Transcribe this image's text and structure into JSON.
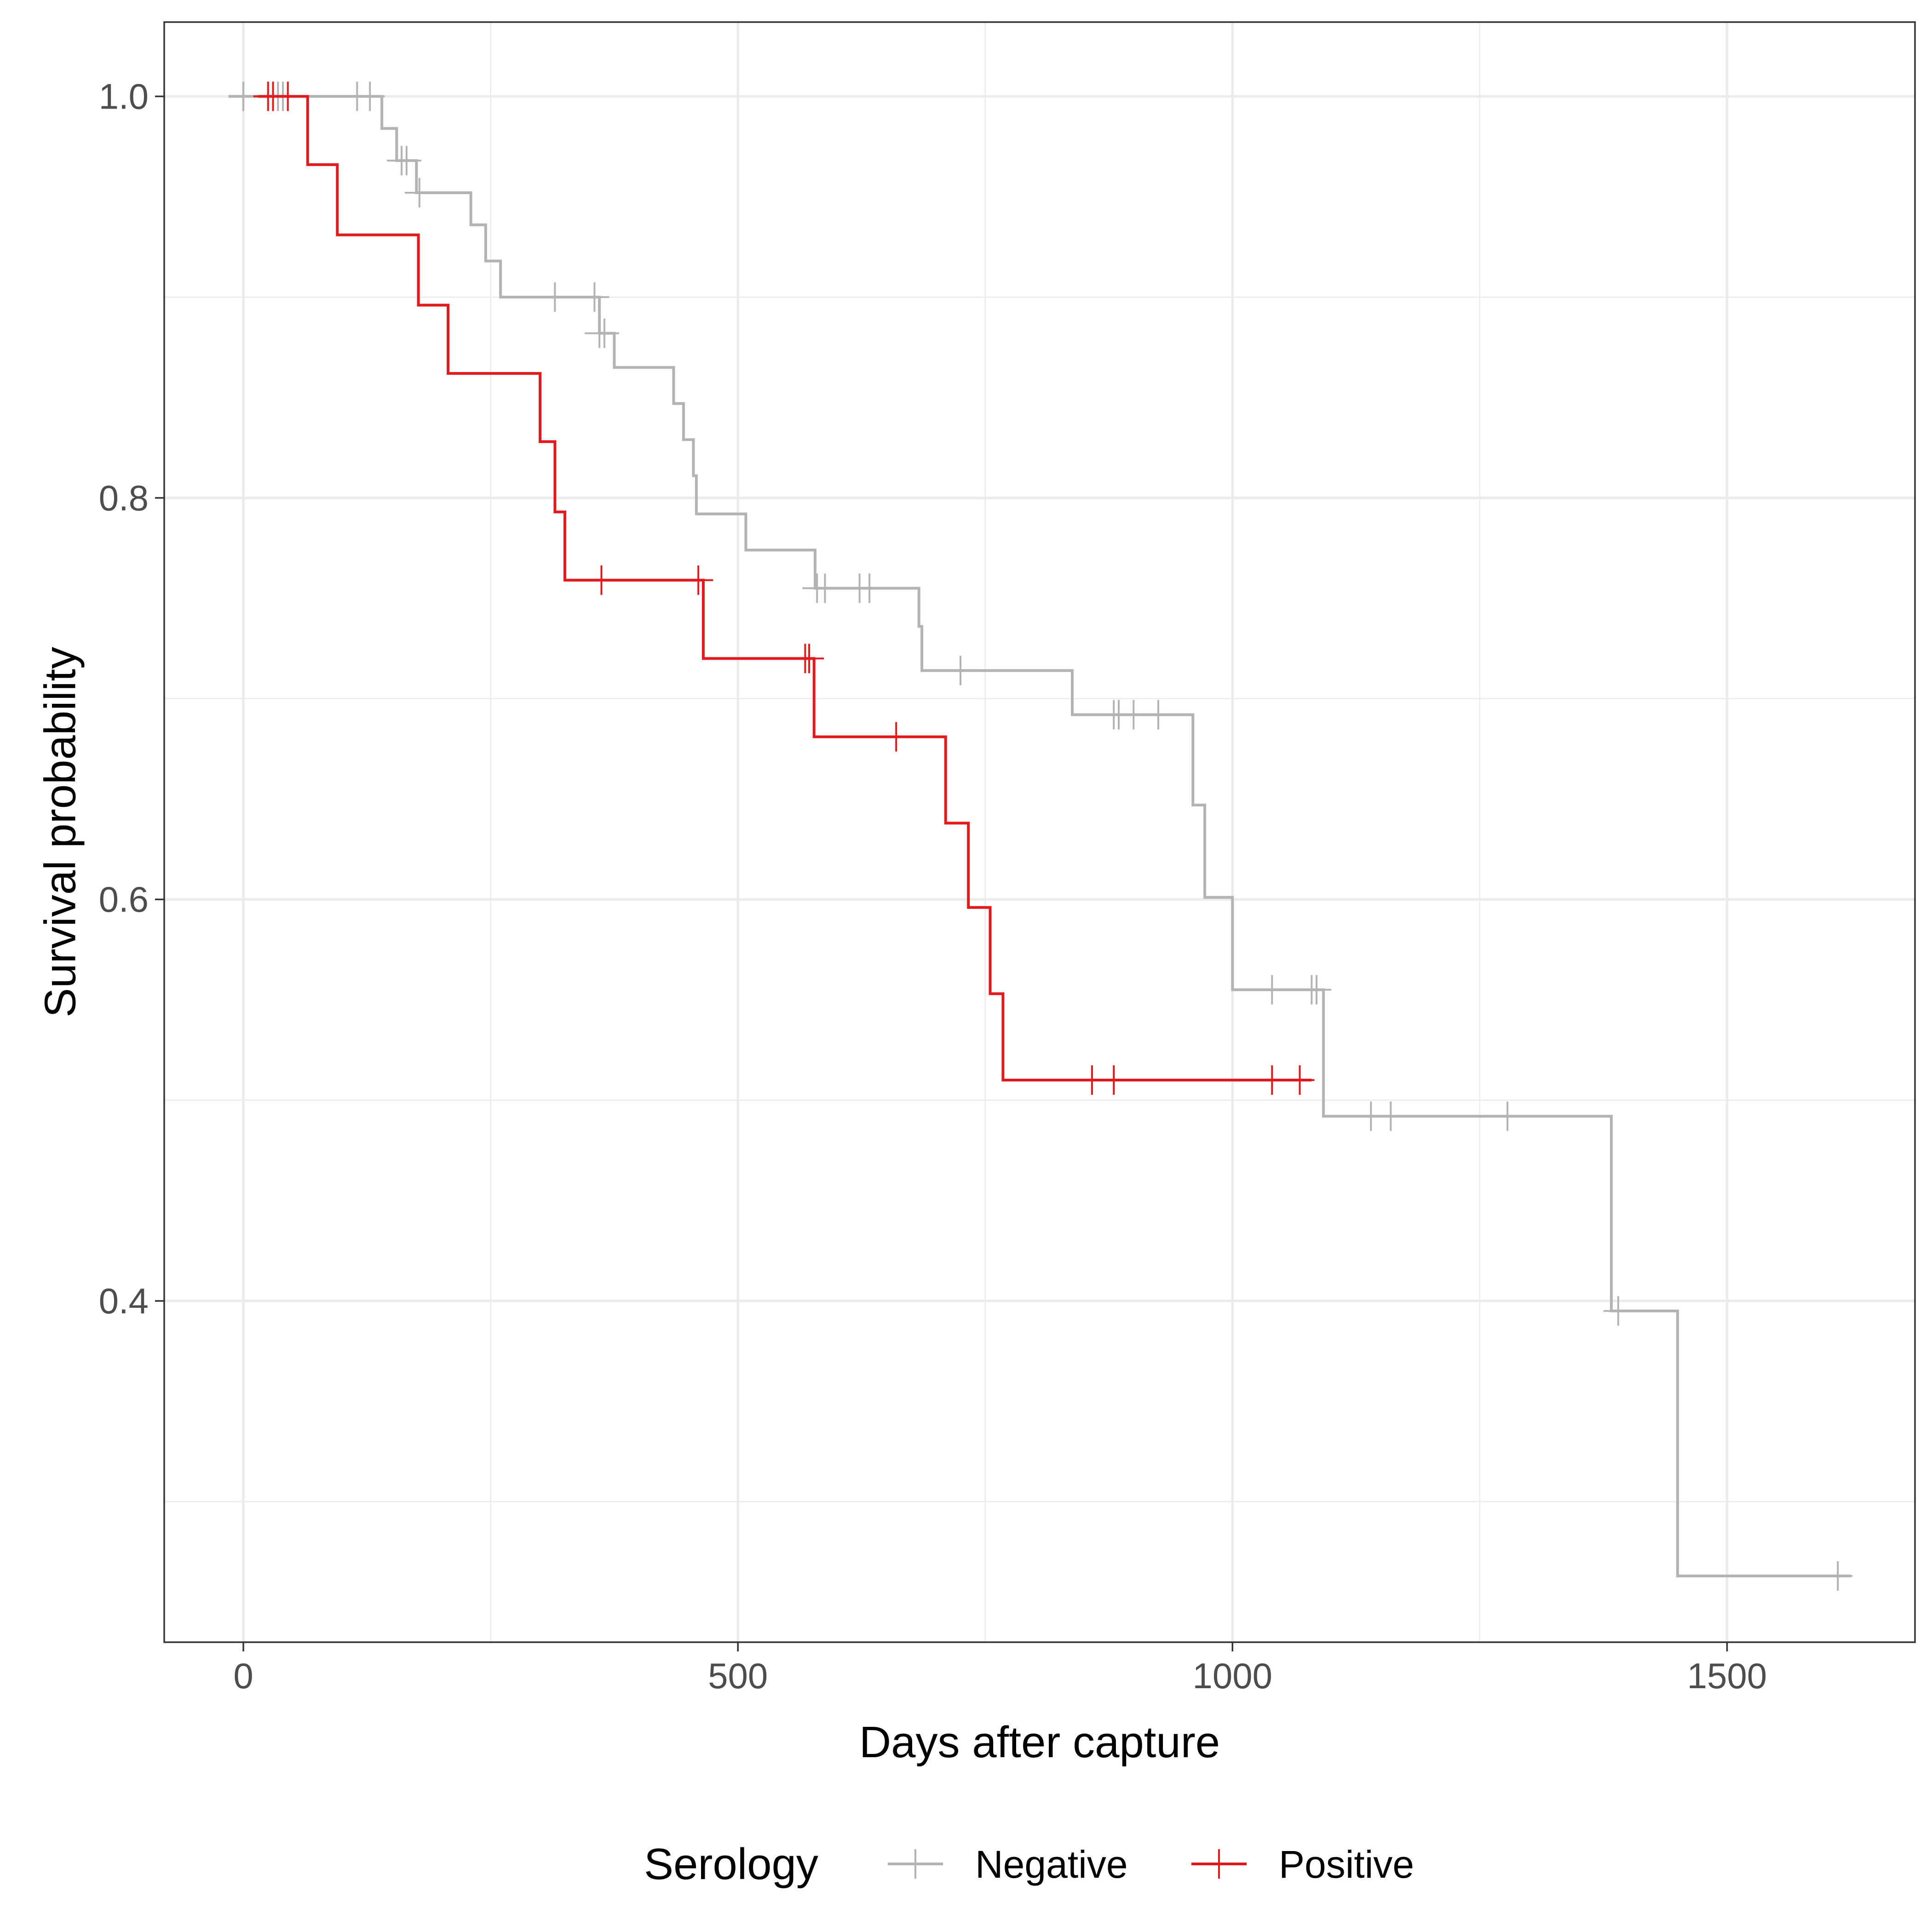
{
  "chart_data": {
    "type": "line",
    "subtype": "kaplan-meier step",
    "title": "",
    "xlabel": "Days after capture",
    "ylabel": "Survival probability",
    "xlim": [
      -80,
      1690
    ],
    "ylim": [
      0.23,
      1.037
    ],
    "xticks": [
      0,
      500,
      1000,
      1500
    ],
    "yticks": [
      0.4,
      0.6,
      0.8,
      1.0
    ],
    "ytick_labels": [
      "0.4",
      "0.6",
      "0.8",
      "1.0"
    ],
    "grid": true,
    "legend": {
      "title": "Serology",
      "position": "bottom"
    },
    "series": [
      {
        "name": "Negative",
        "color": "#b3b3b3",
        "steps": [
          [
            -15,
            1.0
          ],
          [
            140,
            1.0
          ],
          [
            140,
            0.984
          ],
          [
            155,
            0.984
          ],
          [
            155,
            0.968
          ],
          [
            175,
            0.968
          ],
          [
            175,
            0.952
          ],
          [
            230,
            0.952
          ],
          [
            230,
            0.936
          ],
          [
            245,
            0.936
          ],
          [
            245,
            0.918
          ],
          [
            260,
            0.918
          ],
          [
            260,
            0.9
          ],
          [
            360,
            0.9
          ],
          [
            360,
            0.882
          ],
          [
            375,
            0.882
          ],
          [
            375,
            0.865
          ],
          [
            435,
            0.865
          ],
          [
            435,
            0.847
          ],
          [
            445,
            0.847
          ],
          [
            445,
            0.829
          ],
          [
            455,
            0.829
          ],
          [
            455,
            0.811
          ],
          [
            458,
            0.811
          ],
          [
            458,
            0.792
          ],
          [
            508,
            0.792
          ],
          [
            508,
            0.774
          ],
          [
            578,
            0.774
          ],
          [
            578,
            0.755
          ],
          [
            683,
            0.755
          ],
          [
            683,
            0.736
          ],
          [
            686,
            0.736
          ],
          [
            686,
            0.714
          ],
          [
            838,
            0.714
          ],
          [
            838,
            0.692
          ],
          [
            960,
            0.692
          ],
          [
            960,
            0.647
          ],
          [
            972,
            0.647
          ],
          [
            972,
            0.601
          ],
          [
            1000,
            0.601
          ],
          [
            1000,
            0.555
          ],
          [
            1092,
            0.555
          ],
          [
            1092,
            0.492
          ],
          [
            1383,
            0.492
          ],
          [
            1383,
            0.395
          ],
          [
            1450,
            0.395
          ],
          [
            1450,
            0.263
          ],
          [
            1625,
            0.263
          ]
        ],
        "censored": [
          [
            0,
            1.0
          ],
          [
            30,
            1.0
          ],
          [
            35,
            1.0
          ],
          [
            40,
            1.0
          ],
          [
            115,
            1.0
          ],
          [
            128,
            1.0
          ],
          [
            160,
            0.968
          ],
          [
            165,
            0.968
          ],
          [
            178,
            0.952
          ],
          [
            315,
            0.9
          ],
          [
            355,
            0.9
          ],
          [
            360,
            0.882
          ],
          [
            365,
            0.882
          ],
          [
            580,
            0.755
          ],
          [
            588,
            0.755
          ],
          [
            623,
            0.755
          ],
          [
            633,
            0.755
          ],
          [
            725,
            0.714
          ],
          [
            880,
            0.692
          ],
          [
            885,
            0.692
          ],
          [
            900,
            0.692
          ],
          [
            925,
            0.692
          ],
          [
            1040,
            0.555
          ],
          [
            1080,
            0.555
          ],
          [
            1085,
            0.555
          ],
          [
            1140,
            0.492
          ],
          [
            1160,
            0.492
          ],
          [
            1278,
            0.492
          ],
          [
            1390,
            0.395
          ],
          [
            1612,
            0.263
          ]
        ]
      },
      {
        "name": "Positive",
        "color": "#e31a1c",
        "steps": [
          [
            15,
            1.0
          ],
          [
            65,
            1.0
          ],
          [
            65,
            0.966
          ],
          [
            95,
            0.966
          ],
          [
            95,
            0.931
          ],
          [
            177,
            0.931
          ],
          [
            177,
            0.896
          ],
          [
            207,
            0.896
          ],
          [
            207,
            0.862
          ],
          [
            300,
            0.862
          ],
          [
            300,
            0.828
          ],
          [
            315,
            0.828
          ],
          [
            315,
            0.793
          ],
          [
            325,
            0.793
          ],
          [
            325,
            0.759
          ],
          [
            465,
            0.759
          ],
          [
            465,
            0.72
          ],
          [
            577,
            0.72
          ],
          [
            577,
            0.681
          ],
          [
            710,
            0.681
          ],
          [
            710,
            0.638
          ],
          [
            733,
            0.638
          ],
          [
            733,
            0.596
          ],
          [
            755,
            0.596
          ],
          [
            755,
            0.553
          ],
          [
            768,
            0.553
          ],
          [
            768,
            0.51
          ],
          [
            1080,
            0.51
          ]
        ],
        "censored": [
          [
            25,
            1.0
          ],
          [
            30,
            1.0
          ],
          [
            45,
            1.0
          ],
          [
            362,
            0.759
          ],
          [
            460,
            0.759
          ],
          [
            568,
            0.72
          ],
          [
            572,
            0.72
          ],
          [
            660,
            0.681
          ],
          [
            858,
            0.51
          ],
          [
            880,
            0.51
          ],
          [
            1040,
            0.51
          ],
          [
            1068,
            0.51
          ]
        ]
      }
    ]
  }
}
